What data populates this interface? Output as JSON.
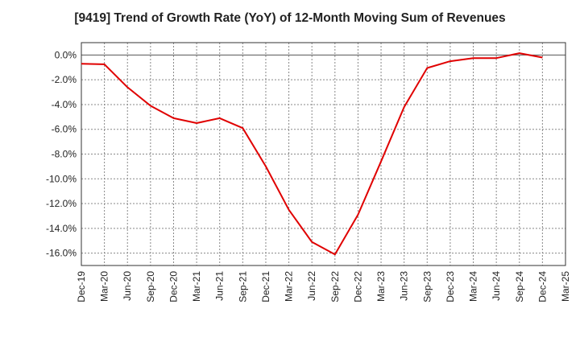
{
  "chart_data": {
    "type": "line",
    "title": "[9419]  Trend of Growth Rate (YoY) of 12-Month Moving Sum of Revenues",
    "xlabel": "",
    "ylabel": "",
    "x_ticks": [
      "Dec-19",
      "Mar-20",
      "Jun-20",
      "Sep-20",
      "Dec-20",
      "Mar-21",
      "Jun-21",
      "Sep-21",
      "Dec-21",
      "Mar-22",
      "Jun-22",
      "Sep-22",
      "Dec-22",
      "Mar-23",
      "Jun-23",
      "Sep-23",
      "Dec-23",
      "Mar-24",
      "Jun-24",
      "Sep-24",
      "Dec-24",
      "Mar-25"
    ],
    "y_ticks": [
      0,
      -2,
      -4,
      -6,
      -8,
      -10,
      -12,
      -14,
      -16
    ],
    "y_tick_labels": [
      "0.0%",
      "-2.0%",
      "-4.0%",
      "-6.0%",
      "-8.0%",
      "-10.0%",
      "-12.0%",
      "-14.0%",
      "-16.0%"
    ],
    "ylim": [
      -17,
      1
    ],
    "grid": true,
    "line_color": "#e00000",
    "series": [
      {
        "x": [
          "Dec-19",
          "Mar-20",
          "Jun-20",
          "Sep-20",
          "Dec-20",
          "Mar-21",
          "Jun-21",
          "Sep-21",
          "Dec-21",
          "Mar-22",
          "Jun-22",
          "Sep-22",
          "Dec-22",
          "Mar-23",
          "Jun-23",
          "Sep-23",
          "Dec-23",
          "Mar-24",
          "Jun-24",
          "Sep-24",
          "Dec-24"
        ],
        "values": [
          -0.7,
          -0.75,
          -2.6,
          -4.1,
          -5.1,
          -5.5,
          -5.1,
          -5.9,
          -9.0,
          -12.5,
          -15.1,
          -16.1,
          -12.9,
          -8.6,
          -4.2,
          -1.05,
          -0.5,
          -0.25,
          -0.25,
          0.15,
          -0.2
        ]
      }
    ]
  }
}
